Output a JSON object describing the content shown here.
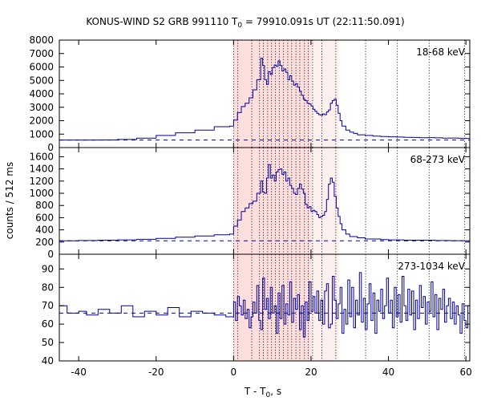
{
  "title": {
    "prefix": "KONUS-WIND S2 GRB 991110 T",
    "sub": "0",
    "suffix": " = 79910.091s UT (22:11:50.091)"
  },
  "xlabel": {
    "main": "T - T",
    "sub": "0",
    "unit": ", s"
  },
  "ylabel": "counts / 512 ms",
  "colors": {
    "series": "#0000a0",
    "shade_outer": "#fff0f0",
    "shade_inner": "#ffdede",
    "vlines": "#000000"
  },
  "chart_data": {
    "type": "line",
    "xlim": [
      -45,
      61
    ],
    "x_ticks": [
      -40,
      -20,
      0,
      20,
      40,
      60
    ],
    "x_tick_labels": [
      "-40",
      "-20",
      "0",
      "20",
      "40",
      "60"
    ],
    "shaded_regions": [
      {
        "x0": 0,
        "x1": 27.2,
        "style": "outer"
      },
      {
        "x0": 0,
        "x1": 20.0,
        "style": "inner"
      }
    ],
    "vertical_lines": [
      0,
      1.1,
      4.7,
      6.7,
      7.7,
      8.8,
      9.8,
      10.8,
      11.8,
      12.9,
      14.0,
      15.0,
      16.1,
      17.1,
      18.3,
      19.3,
      20.4,
      22.8,
      26.4,
      34.1,
      42.3,
      50.5,
      59.7
    ],
    "panels": [
      {
        "label": "18-68 keV",
        "ylim": [
          0,
          8000
        ],
        "yticks": [
          0,
          1000,
          2000,
          3000,
          4000,
          5000,
          6000,
          7000,
          8000
        ],
        "ytick_labels": [
          "0",
          "1000",
          "2000",
          "3000",
          "4000",
          "5000",
          "6000",
          "7000",
          "8000"
        ],
        "background": 560,
        "points": [
          [
            -45,
            560
          ],
          [
            -40,
            560
          ],
          [
            -35,
            570
          ],
          [
            -30,
            600
          ],
          [
            -25,
            700
          ],
          [
            -20,
            900
          ],
          [
            -15,
            1100
          ],
          [
            -10,
            1300
          ],
          [
            -5,
            1550
          ],
          [
            -1,
            1600
          ],
          [
            0,
            2050
          ],
          [
            1,
            2600
          ],
          [
            2,
            3050
          ],
          [
            3,
            3300
          ],
          [
            4,
            3700
          ],
          [
            5,
            4300
          ],
          [
            6,
            5050
          ],
          [
            7,
            6650
          ],
          [
            7.5,
            6100
          ],
          [
            8,
            5050
          ],
          [
            8.5,
            4700
          ],
          [
            9,
            5650
          ],
          [
            9.5,
            5450
          ],
          [
            10,
            5950
          ],
          [
            10.5,
            6150
          ],
          [
            11,
            6050
          ],
          [
            11.5,
            6450
          ],
          [
            12,
            6100
          ],
          [
            12.5,
            5700
          ],
          [
            13,
            5850
          ],
          [
            13.5,
            5600
          ],
          [
            14,
            5050
          ],
          [
            14.5,
            5350
          ],
          [
            15,
            4950
          ],
          [
            15.5,
            4650
          ],
          [
            16,
            4750
          ],
          [
            16.5,
            4500
          ],
          [
            17,
            4200
          ],
          [
            17.5,
            3900
          ],
          [
            18,
            3600
          ],
          [
            18.5,
            3500
          ],
          [
            19,
            3300
          ],
          [
            19.5,
            3250
          ],
          [
            20,
            3100
          ],
          [
            20.5,
            2850
          ],
          [
            21,
            2700
          ],
          [
            21.5,
            2550
          ],
          [
            22,
            2450
          ],
          [
            22.5,
            2400
          ],
          [
            23,
            2500
          ],
          [
            23.5,
            2450
          ],
          [
            24,
            2650
          ],
          [
            24.5,
            2800
          ],
          [
            25,
            3300
          ],
          [
            25.5,
            3500
          ],
          [
            26,
            3600
          ],
          [
            26.5,
            3150
          ],
          [
            27,
            2550
          ],
          [
            27.5,
            2000
          ],
          [
            28,
            1600
          ],
          [
            29,
            1300
          ],
          [
            30,
            1150
          ],
          [
            31,
            1050
          ],
          [
            32,
            950
          ],
          [
            34,
            900
          ],
          [
            36,
            850
          ],
          [
            38,
            820
          ],
          [
            40,
            800
          ],
          [
            42,
            780
          ],
          [
            44,
            760
          ],
          [
            46,
            750
          ],
          [
            48,
            730
          ],
          [
            50,
            740
          ],
          [
            52,
            720
          ],
          [
            54,
            700
          ],
          [
            56,
            710
          ],
          [
            58,
            690
          ],
          [
            60,
            680
          ],
          [
            61,
            660
          ]
        ]
      },
      {
        "label": "68-273 keV",
        "ylim": [
          0,
          1750
        ],
        "yticks": [
          0,
          200,
          400,
          600,
          800,
          1000,
          1200,
          1400,
          1600
        ],
        "ytick_labels": [
          "0",
          "200",
          "400",
          "600",
          "800",
          "1000",
          "1200",
          "1400",
          "1600"
        ],
        "background": 220,
        "points": [
          [
            -45,
            220
          ],
          [
            -40,
            225
          ],
          [
            -35,
            230
          ],
          [
            -30,
            235
          ],
          [
            -25,
            245
          ],
          [
            -20,
            260
          ],
          [
            -15,
            280
          ],
          [
            -10,
            300
          ],
          [
            -5,
            320
          ],
          [
            -1,
            330
          ],
          [
            0,
            460
          ],
          [
            1,
            560
          ],
          [
            2,
            700
          ],
          [
            3,
            760
          ],
          [
            4,
            830
          ],
          [
            5,
            870
          ],
          [
            6,
            1000
          ],
          [
            7,
            1200
          ],
          [
            7.5,
            1020
          ],
          [
            8,
            1000
          ],
          [
            8.5,
            1250
          ],
          [
            9,
            1470
          ],
          [
            9.5,
            1250
          ],
          [
            10,
            1300
          ],
          [
            10.5,
            1200
          ],
          [
            11,
            1350
          ],
          [
            11.5,
            1390
          ],
          [
            12,
            1400
          ],
          [
            12.5,
            1310
          ],
          [
            13,
            1350
          ],
          [
            13.5,
            1200
          ],
          [
            14,
            1250
          ],
          [
            14.5,
            1130
          ],
          [
            15,
            1080
          ],
          [
            15.5,
            1000
          ],
          [
            16,
            980
          ],
          [
            16.5,
            1080
          ],
          [
            17,
            1150
          ],
          [
            17.5,
            1070
          ],
          [
            18,
            1000
          ],
          [
            18.5,
            820
          ],
          [
            19,
            760
          ],
          [
            19.5,
            780
          ],
          [
            20,
            700
          ],
          [
            20.5,
            720
          ],
          [
            21,
            700
          ],
          [
            21.5,
            650
          ],
          [
            22,
            600
          ],
          [
            22.5,
            620
          ],
          [
            23,
            640
          ],
          [
            23.5,
            700
          ],
          [
            24,
            900
          ],
          [
            24.5,
            1150
          ],
          [
            25,
            1250
          ],
          [
            25.5,
            1180
          ],
          [
            26,
            950
          ],
          [
            26.5,
            760
          ],
          [
            27,
            620
          ],
          [
            27.5,
            500
          ],
          [
            28,
            400
          ],
          [
            29,
            330
          ],
          [
            30,
            290
          ],
          [
            32,
            270
          ],
          [
            34,
            250
          ],
          [
            36,
            250
          ],
          [
            38,
            240
          ],
          [
            40,
            235
          ],
          [
            44,
            230
          ],
          [
            48,
            230
          ],
          [
            52,
            225
          ],
          [
            56,
            222
          ],
          [
            60,
            220
          ],
          [
            61,
            215
          ]
        ]
      },
      {
        "label": "273-1034 keV",
        "ylim": [
          40,
          98
        ],
        "yticks": [
          40,
          50,
          60,
          70,
          80,
          90
        ],
        "ytick_labels": [
          "40",
          "50",
          "60",
          "70",
          "80",
          "90"
        ],
        "background": 66,
        "points": [
          [
            -45,
            70
          ],
          [
            -43,
            66
          ],
          [
            -40,
            67
          ],
          [
            -38,
            65
          ],
          [
            -35,
            68
          ],
          [
            -32,
            66
          ],
          [
            -29,
            70
          ],
          [
            -26,
            64
          ],
          [
            -23,
            67
          ],
          [
            -20,
            65
          ],
          [
            -17,
            69
          ],
          [
            -14,
            64
          ],
          [
            -11,
            67
          ],
          [
            -8,
            66
          ],
          [
            -5,
            65
          ],
          [
            -2,
            64
          ],
          [
            0,
            72
          ],
          [
            0.5,
            62
          ],
          [
            1,
            75
          ],
          [
            1.5,
            70
          ],
          [
            2,
            65
          ],
          [
            2.5,
            73
          ],
          [
            3,
            63
          ],
          [
            3.5,
            68
          ],
          [
            4,
            58
          ],
          [
            4.5,
            64
          ],
          [
            5,
            72
          ],
          [
            5.5,
            66
          ],
          [
            6,
            81
          ],
          [
            6.5,
            62
          ],
          [
            7,
            57
          ],
          [
            7.5,
            85
          ],
          [
            8,
            68
          ],
          [
            8.5,
            74
          ],
          [
            9,
            63
          ],
          [
            9.5,
            80
          ],
          [
            10,
            66
          ],
          [
            10.5,
            70
          ],
          [
            11,
            55
          ],
          [
            11.5,
            77
          ],
          [
            12,
            63
          ],
          [
            12.5,
            81
          ],
          [
            13,
            60
          ],
          [
            13.5,
            71
          ],
          [
            14,
            65
          ],
          [
            14.5,
            83
          ],
          [
            15,
            61
          ],
          [
            15.5,
            74
          ],
          [
            16,
            68
          ],
          [
            16.5,
            76
          ],
          [
            17,
            57
          ],
          [
            17.5,
            70
          ],
          [
            18,
            53
          ],
          [
            18.5,
            72
          ],
          [
            19,
            62
          ],
          [
            19.5,
            83
          ],
          [
            20,
            67
          ],
          [
            20.5,
            75
          ],
          [
            21,
            66
          ],
          [
            21.5,
            78
          ],
          [
            22,
            62
          ],
          [
            22.5,
            73
          ],
          [
            23,
            60
          ],
          [
            23.5,
            78
          ],
          [
            24,
            82
          ],
          [
            24.5,
            58
          ],
          [
            25,
            60
          ],
          [
            25.5,
            86
          ],
          [
            26,
            73
          ],
          [
            26.5,
            63
          ],
          [
            27,
            71
          ],
          [
            27.5,
            80
          ],
          [
            28,
            55
          ],
          [
            28.5,
            68
          ],
          [
            29,
            60
          ],
          [
            29.5,
            84
          ],
          [
            30,
            64
          ],
          [
            30.5,
            80
          ],
          [
            31,
            58
          ],
          [
            31.5,
            73
          ],
          [
            32,
            65
          ],
          [
            32.5,
            88
          ],
          [
            33,
            61
          ],
          [
            33.5,
            74
          ],
          [
            34,
            57
          ],
          [
            34.5,
            71
          ],
          [
            35,
            82
          ],
          [
            35.5,
            62
          ],
          [
            36,
            77
          ],
          [
            36.5,
            55
          ],
          [
            37,
            73
          ],
          [
            37.5,
            67
          ],
          [
            38,
            79
          ],
          [
            38.5,
            63
          ],
          [
            39,
            70
          ],
          [
            39.5,
            85
          ],
          [
            40,
            66
          ],
          [
            40.5,
            73
          ],
          [
            41,
            58
          ],
          [
            41.5,
            80
          ],
          [
            42,
            64
          ],
          [
            42.5,
            76
          ],
          [
            43,
            61
          ],
          [
            43.5,
            86
          ],
          [
            44,
            70
          ],
          [
            44.5,
            62
          ],
          [
            45,
            79
          ],
          [
            45.5,
            65
          ],
          [
            46,
            78
          ],
          [
            46.5,
            57
          ],
          [
            47,
            73
          ],
          [
            47.5,
            63
          ],
          [
            48,
            81
          ],
          [
            48.5,
            69
          ],
          [
            49,
            75
          ],
          [
            49.5,
            60
          ],
          [
            50,
            72
          ],
          [
            50.5,
            67
          ],
          [
            51,
            83
          ],
          [
            51.5,
            64
          ],
          [
            52,
            76
          ],
          [
            52.5,
            57
          ],
          [
            53,
            74
          ],
          [
            53.5,
            68
          ],
          [
            54,
            79
          ],
          [
            54.5,
            61
          ],
          [
            55,
            70
          ],
          [
            55.5,
            74
          ],
          [
            56,
            63
          ],
          [
            56.5,
            72
          ],
          [
            57,
            60
          ],
          [
            57.5,
            70
          ],
          [
            58,
            65
          ],
          [
            58.5,
            55
          ],
          [
            59,
            71
          ],
          [
            59.5,
            62
          ],
          [
            60,
            58
          ],
          [
            60.5,
            70
          ],
          [
            61,
            65
          ]
        ]
      }
    ]
  }
}
